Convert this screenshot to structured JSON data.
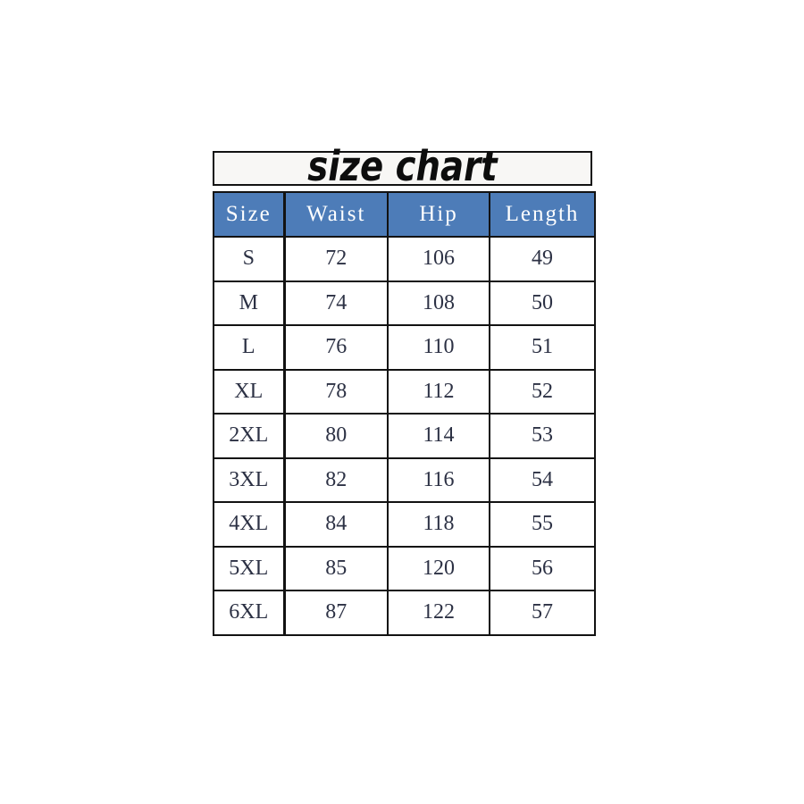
{
  "title": {
    "text": "size chart"
  },
  "theme": {
    "page_bg": "#ffffff",
    "title_box_bg": "#f8f7f5",
    "header_bg": "#4d7cb8",
    "header_text": "#ffffff",
    "body_text": "#2c3144",
    "border": "#121212"
  },
  "chart_data": {
    "type": "table",
    "title": "size chart",
    "columns": [
      "Size",
      "Waist",
      "Hip",
      "Length"
    ],
    "rows": [
      [
        "S",
        72,
        106,
        49
      ],
      [
        "M",
        74,
        108,
        50
      ],
      [
        "L",
        76,
        110,
        51
      ],
      [
        "XL",
        78,
        112,
        52
      ],
      [
        "2XL",
        80,
        114,
        53
      ],
      [
        "3XL",
        82,
        116,
        54
      ],
      [
        "4XL",
        84,
        118,
        55
      ],
      [
        "5XL",
        85,
        120,
        56
      ],
      [
        "6XL",
        87,
        122,
        57
      ]
    ]
  }
}
